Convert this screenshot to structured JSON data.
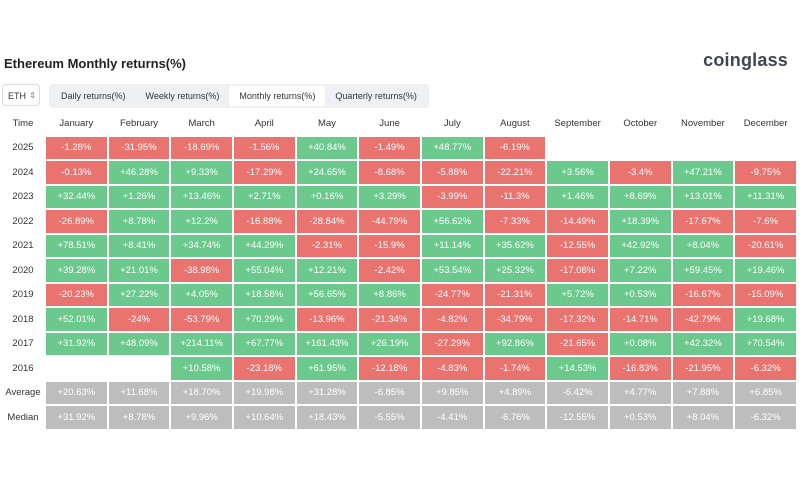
{
  "title": "Ethereum Monthly returns(%)",
  "brand": "coinglass",
  "coin_select": {
    "value": "ETH"
  },
  "tabs": [
    {
      "label": "Daily returns(%)",
      "active": false
    },
    {
      "label": "Weekly returns(%)",
      "active": false
    },
    {
      "label": "Monthly returns(%)",
      "active": true
    },
    {
      "label": "Quarterly returns(%)",
      "active": false
    }
  ],
  "colors": {
    "positive": "#6cc98d",
    "negative": "#e8736f",
    "summary": "#bdbdbd"
  },
  "columns": [
    "Time",
    "January",
    "February",
    "March",
    "April",
    "May",
    "June",
    "July",
    "August",
    "September",
    "October",
    "November",
    "December"
  ],
  "rows": [
    {
      "label": "2025",
      "values": [
        "-1.28%",
        "-31.95%",
        "-18.69%",
        "-1.56%",
        "+40.84%",
        "-1.49%",
        "+48.77%",
        "-6.19%",
        "",
        "",
        "",
        ""
      ]
    },
    {
      "label": "2024",
      "values": [
        "-0.13%",
        "+46.28%",
        "+9.33%",
        "-17.29%",
        "+24.65%",
        "-8.68%",
        "-5.88%",
        "-22.21%",
        "+3.56%",
        "-3.4%",
        "+47.21%",
        "-9.75%"
      ]
    },
    {
      "label": "2023",
      "values": [
        "+32.44%",
        "+1.26%",
        "+13.46%",
        "+2.71%",
        "+0.16%",
        "+3.29%",
        "-3.99%",
        "-11.3%",
        "+1.46%",
        "+8.69%",
        "+13.01%",
        "+11.31%"
      ]
    },
    {
      "label": "2022",
      "values": [
        "-26.89%",
        "+8.78%",
        "+12.2%",
        "-16.88%",
        "-28.84%",
        "-44.79%",
        "+56.62%",
        "-7.33%",
        "-14.49%",
        "+18.39%",
        "-17.67%",
        "-7.6%"
      ]
    },
    {
      "label": "2021",
      "values": [
        "+78.51%",
        "+8.41%",
        "+34.74%",
        "+44.29%",
        "-2.31%",
        "-15.9%",
        "+11.14%",
        "+35.62%",
        "-12.55%",
        "+42.92%",
        "+8.04%",
        "-20.61%"
      ]
    },
    {
      "label": "2020",
      "values": [
        "+39.28%",
        "+21.01%",
        "-38.98%",
        "+55.04%",
        "+12.21%",
        "-2.42%",
        "+53.54%",
        "+25.32%",
        "-17.08%",
        "+7.22%",
        "+59.45%",
        "+19.46%"
      ]
    },
    {
      "label": "2019",
      "values": [
        "-20.23%",
        "+27.22%",
        "+4.05%",
        "+18.58%",
        "+56.65%",
        "+8.86%",
        "-24.77%",
        "-21.31%",
        "+5.72%",
        "+0.53%",
        "-16.67%",
        "-15.09%"
      ]
    },
    {
      "label": "2018",
      "values": [
        "+52.01%",
        "-24%",
        "-53.79%",
        "+70.29%",
        "-13.96%",
        "-21.34%",
        "-4.82%",
        "-34.79%",
        "-17.32%",
        "-14.71%",
        "-42.79%",
        "+19.68%"
      ]
    },
    {
      "label": "2017",
      "values": [
        "+31.92%",
        "+48.09%",
        "+214.11%",
        "+67.77%",
        "+161.43%",
        "+26.19%",
        "-27.29%",
        "+92.86%",
        "-21.65%",
        "+0.08%",
        "+42.32%",
        "+70.54%"
      ]
    },
    {
      "label": "2016",
      "values": [
        "",
        "",
        "+10.58%",
        "-23.18%",
        "+61.95%",
        "-12.18%",
        "-4.83%",
        "-1.74%",
        "+14.53%",
        "-16.83%",
        "-21.95%",
        "-6.32%"
      ]
    }
  ],
  "summary_rows": [
    {
      "label": "Average",
      "values": [
        "+20.63%",
        "+11.68%",
        "+18.70%",
        "+19.98%",
        "+31.28%",
        "-6.85%",
        "+9.85%",
        "+4.89%",
        "-6.42%",
        "+4.77%",
        "+7.88%",
        "+6.85%"
      ]
    },
    {
      "label": "Median",
      "values": [
        "+31.92%",
        "+8.78%",
        "+9.96%",
        "+10.64%",
        "+18.43%",
        "-5.55%",
        "-4.41%",
        "-6.76%",
        "-12.55%",
        "+0.53%",
        "+8.04%",
        "-6.32%"
      ]
    }
  ]
}
